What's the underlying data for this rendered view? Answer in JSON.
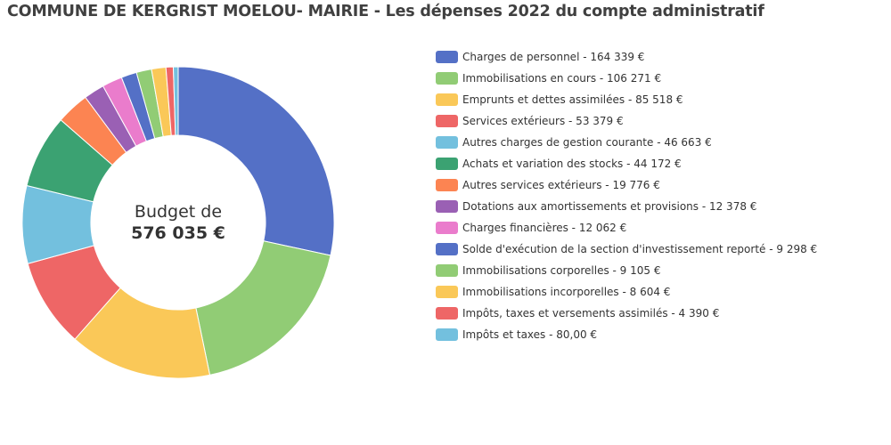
{
  "title": "COMMUNE DE KERGRIST MOELOU- MAIRIE - Les dépenses 2022 du compte administratif",
  "center": {
    "line1": "Budget de",
    "line2": "576 035 €"
  },
  "chart_data": {
    "type": "pie",
    "variant": "donut",
    "title": "COMMUNE DE KERGRIST MOELOU- MAIRIE - Les dépenses 2022 du compte administratif",
    "legend_position": "right",
    "total_label": "576 035 €",
    "slices": [
      {
        "name": "Charges de personnel",
        "value": 164339,
        "label": "164 339 €",
        "color": "#5470c6"
      },
      {
        "name": "Immobilisations en cours",
        "value": 106271,
        "label": "106 271 €",
        "color": "#91cc75"
      },
      {
        "name": "Emprunts et dettes assimilées",
        "value": 85518,
        "label": "85 518 €",
        "color": "#fac858"
      },
      {
        "name": "Services extérieurs",
        "value": 53379,
        "label": "53 379 €",
        "color": "#ee6666"
      },
      {
        "name": "Autres charges de gestion courante",
        "value": 46663,
        "label": "46 663 €",
        "color": "#73c0de"
      },
      {
        "name": "Achats et variation des stocks",
        "value": 44172,
        "label": "44 172 €",
        "color": "#3ba272"
      },
      {
        "name": "Autres services extérieurs",
        "value": 19776,
        "label": "19 776 €",
        "color": "#fc8452"
      },
      {
        "name": "Dotations aux amortissements et provisions",
        "value": 12378,
        "label": "12 378 €",
        "color": "#9a60b4"
      },
      {
        "name": "Charges financières",
        "value": 12062,
        "label": "12 062 €",
        "color": "#ea7ccc"
      },
      {
        "name": "Solde d'exécution de la section d'investissement reporté",
        "value": 9298,
        "label": "9 298 €",
        "color": "#5470c6"
      },
      {
        "name": "Immobilisations corporelles",
        "value": 9105,
        "label": "9 105 €",
        "color": "#91cc75"
      },
      {
        "name": "Immobilisations incorporelles",
        "value": 8604,
        "label": "8 604 €",
        "color": "#fac858"
      },
      {
        "name": "Impôts, taxes et versements assimilés",
        "value": 4390,
        "label": "4 390 €",
        "color": "#ee6666"
      },
      {
        "name": "Impôts et taxes",
        "value": 80,
        "label": "80,00 €",
        "color": "#73c0de"
      }
    ]
  }
}
